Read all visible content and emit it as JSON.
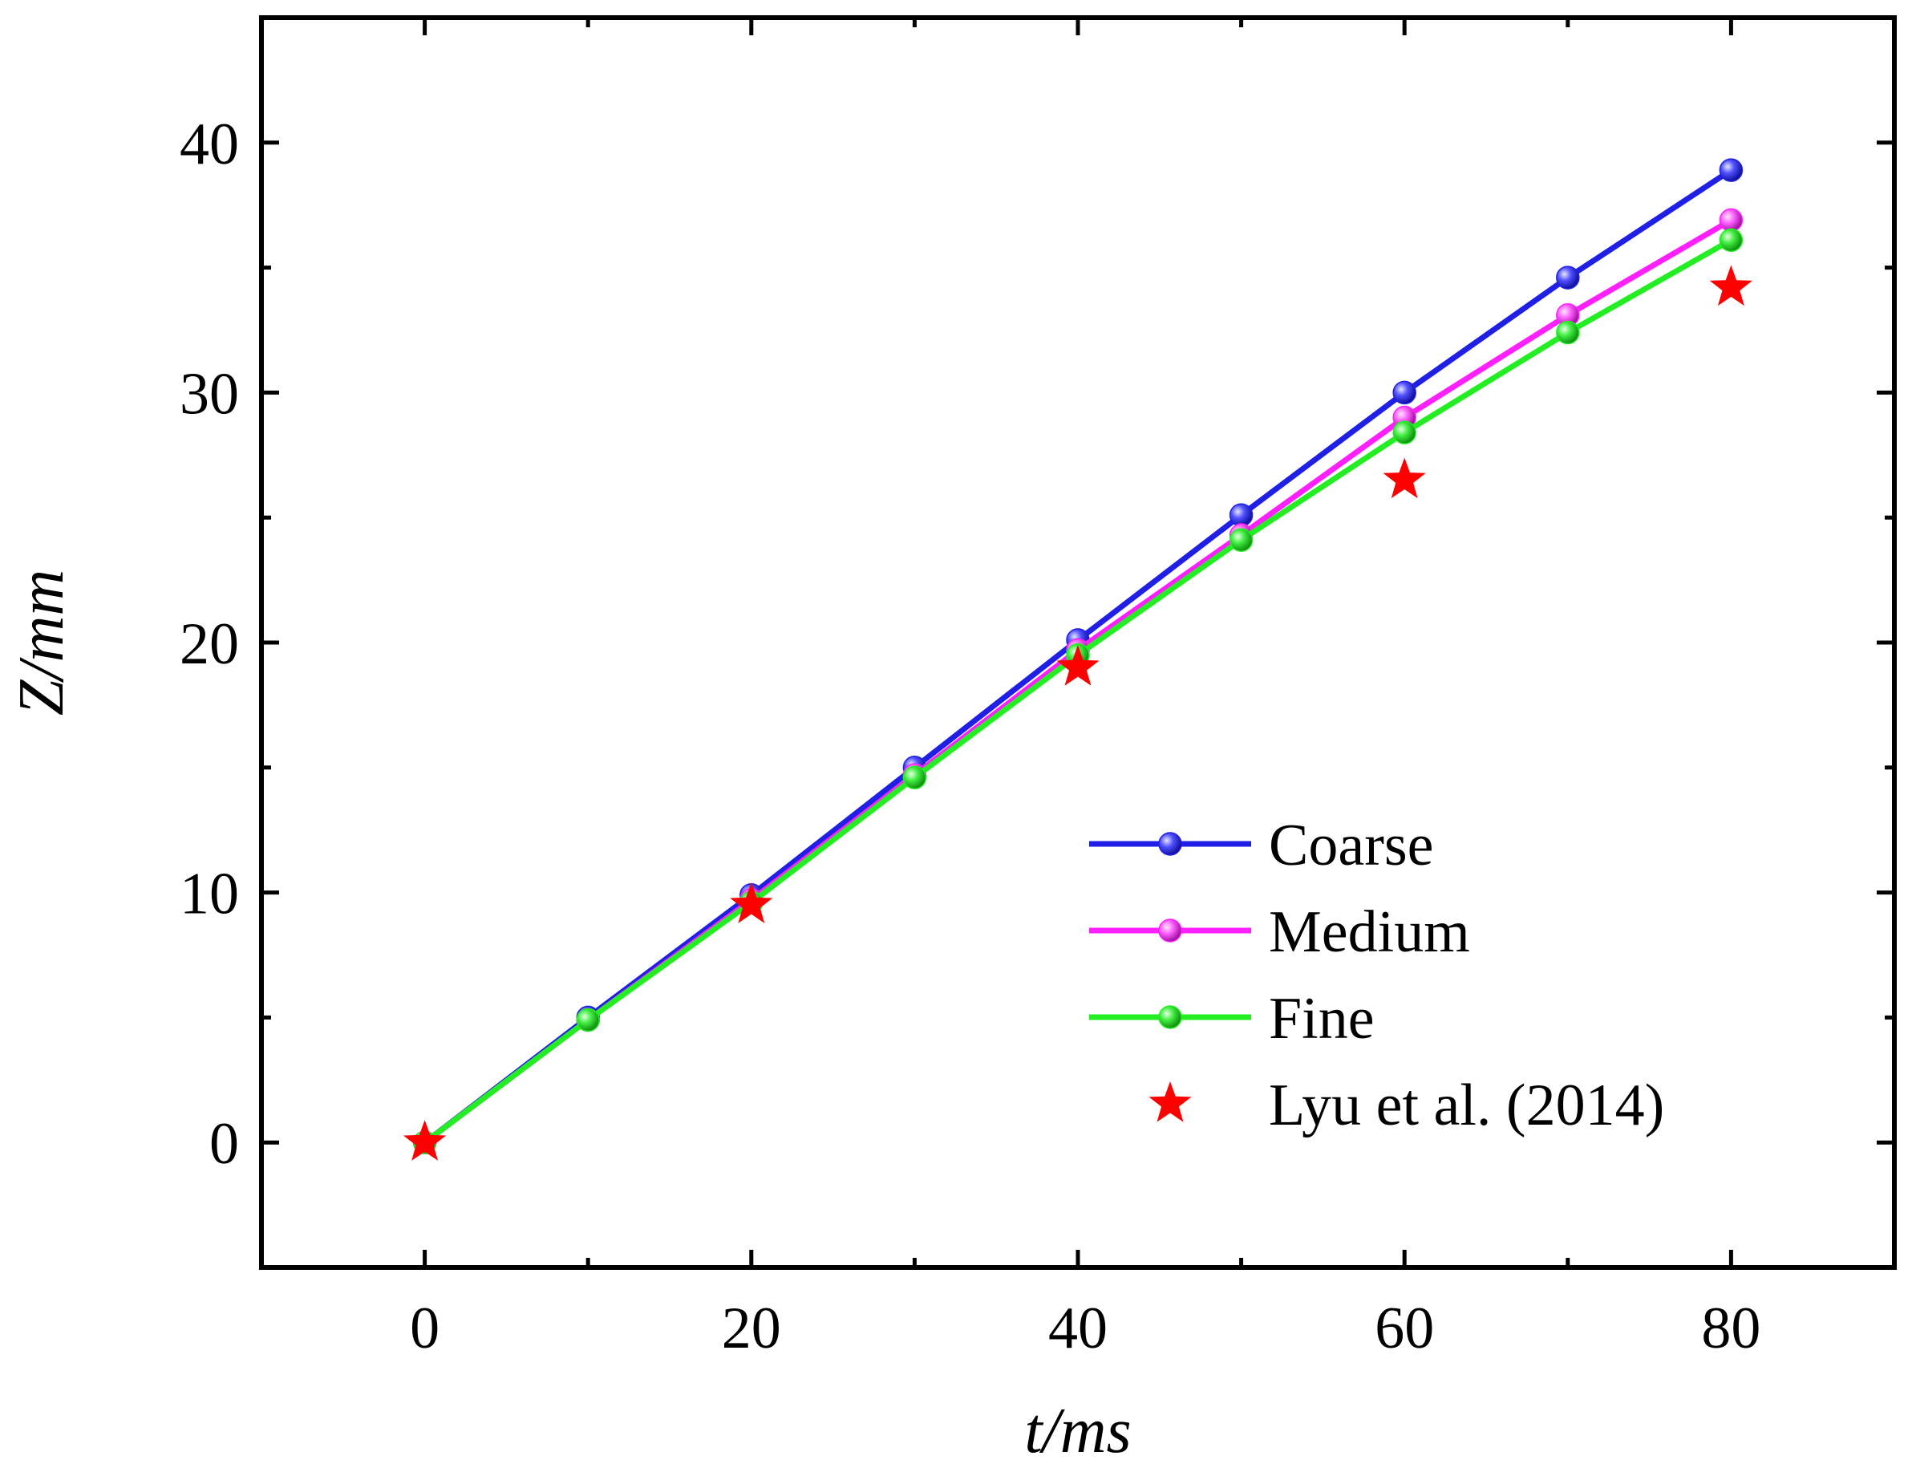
{
  "chart_data": {
    "type": "line",
    "title": "",
    "xlabel": "t/ms",
    "ylabel": "Z/mm",
    "xlim": [
      -10,
      90
    ],
    "ylim": [
      -5,
      45
    ],
    "x_ticks": [
      0,
      20,
      40,
      60,
      80
    ],
    "y_ticks": [
      0,
      10,
      20,
      30,
      40
    ],
    "x_minor_ticks": [
      10,
      30,
      50,
      70
    ],
    "y_minor_ticks": [
      5,
      15,
      25,
      35
    ],
    "x_tick_labels": [
      "0",
      "20",
      "40",
      "60",
      "80"
    ],
    "y_tick_labels": [
      "0",
      "10",
      "20",
      "30",
      "40"
    ],
    "grid": false,
    "legend_position": "bottom-right",
    "series": [
      {
        "name": "Coarse",
        "color": "#1f1fe6",
        "marker": "circle",
        "x": [
          0,
          10,
          20,
          30,
          40,
          50,
          60,
          70,
          80
        ],
        "y": [
          0,
          5.0,
          9.9,
          15.0,
          20.1,
          25.1,
          30.0,
          34.6,
          38.9
        ]
      },
      {
        "name": "Medium",
        "color": "#ff1fff",
        "marker": "circle",
        "x": [
          0,
          10,
          20,
          30,
          40,
          50,
          60,
          70,
          80
        ],
        "y": [
          0,
          4.9,
          9.7,
          14.7,
          19.7,
          24.3,
          29.0,
          33.1,
          36.9
        ]
      },
      {
        "name": "Fine",
        "color": "#22ee22",
        "marker": "circle",
        "x": [
          0,
          10,
          20,
          30,
          40,
          50,
          60,
          70,
          80
        ],
        "y": [
          0,
          4.9,
          9.6,
          14.6,
          19.5,
          24.1,
          28.4,
          32.4,
          36.1
        ]
      },
      {
        "name": "Lyu et al. (2014)",
        "color": "#ff0000",
        "marker": "star",
        "line": false,
        "x": [
          0,
          20,
          40,
          60,
          80
        ],
        "y": [
          0,
          9.5,
          19.0,
          26.5,
          34.2
        ]
      }
    ]
  }
}
